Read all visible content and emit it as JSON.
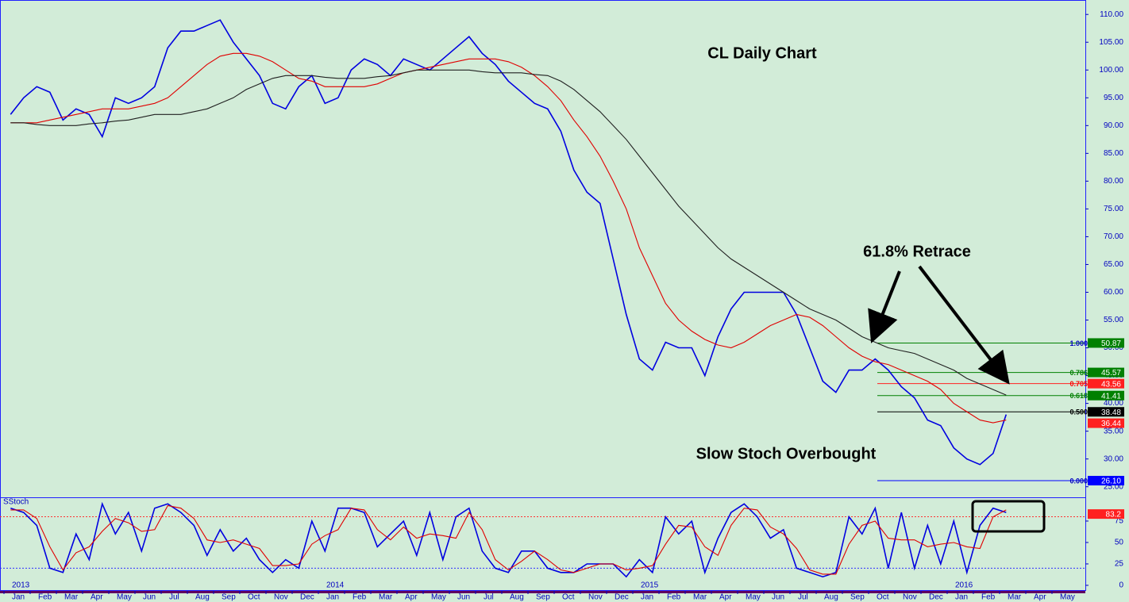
{
  "chart_data": [
    {
      "type": "line",
      "title": "CL Daily Chart",
      "annotations": [
        "61.8% Retrace",
        "Slow Stoch Overbought"
      ],
      "categories": [
        "Jan",
        null,
        "Feb",
        null,
        "Mar",
        null,
        "Apr",
        null,
        "May",
        null,
        "Jun",
        null,
        "Jul",
        null,
        "Aug",
        null,
        "Sep",
        null,
        "Oct",
        null,
        "Nov",
        null,
        "Dec",
        null,
        "Jan",
        null,
        "Feb",
        null,
        "Mar",
        null,
        "Apr",
        null,
        "May",
        null,
        "Jun",
        null,
        "Jul",
        null,
        "Aug",
        null,
        "Sep",
        null,
        "Oct",
        null,
        "Nov",
        null,
        "Dec",
        null,
        "Jan",
        null,
        "Feb",
        null,
        "Mar",
        null,
        "Apr",
        null,
        "May",
        null,
        "Jun",
        null,
        "Jul",
        null,
        "Aug",
        null,
        "Sep",
        null,
        "Oct",
        null,
        "Nov",
        null,
        "Dec",
        null,
        "Jan",
        null,
        "Feb",
        null,
        "Mar",
        null,
        "Apr",
        null,
        "May",
        null
      ],
      "years": [
        2013,
        2014,
        2015,
        2016
      ],
      "series": [
        {
          "color": "#0000e0",
          "values": [
            92,
            95,
            97,
            96,
            91,
            93,
            92,
            88,
            95,
            94,
            95,
            97,
            104,
            107,
            107,
            108,
            109,
            105,
            102,
            99,
            94,
            93,
            97,
            99,
            94,
            95,
            100,
            102,
            101,
            99,
            102,
            101,
            100,
            102,
            104,
            106,
            103,
            101,
            98,
            96,
            94,
            93,
            89,
            82,
            78,
            76,
            66,
            56,
            48,
            46,
            51,
            50,
            50,
            45,
            52,
            57,
            60,
            60,
            60,
            60,
            56,
            50,
            44,
            42,
            46,
            46,
            48,
            46,
            43,
            41,
            37,
            36,
            32,
            30,
            29,
            31,
            38,
            null,
            null,
            null,
            null,
            null
          ]
        },
        {
          "color": "#e00000",
          "values": [
            90.5,
            90.5,
            90.5,
            91,
            91.5,
            92,
            92.5,
            93,
            93,
            93,
            93.5,
            94,
            95,
            97,
            99,
            101,
            102.5,
            103,
            103,
            102.5,
            101.5,
            100,
            98.5,
            98,
            97,
            97,
            97,
            97,
            97.5,
            98.5,
            99.5,
            100,
            100.5,
            101,
            101.5,
            102,
            102,
            102,
            101.5,
            100.5,
            99,
            97,
            94.5,
            91,
            88,
            84.5,
            80,
            75,
            68,
            63,
            58,
            55,
            53,
            51.5,
            50.5,
            50,
            51,
            52.5,
            54,
            55,
            56,
            55.5,
            54,
            52,
            50,
            48.5,
            47.5,
            47,
            46,
            45,
            44,
            42.5,
            40,
            38.5,
            37,
            36.5,
            37,
            null,
            null,
            null,
            null,
            null
          ]
        },
        {
          "color": "#202020",
          "values": [
            90.5,
            90.5,
            90.2,
            90,
            90,
            90,
            90.3,
            90.5,
            90.8,
            91,
            91.5,
            92,
            92,
            92,
            92.5,
            93,
            94,
            95,
            96.5,
            97.5,
            98.5,
            99,
            99,
            99,
            98.7,
            98.5,
            98.5,
            98.5,
            98.8,
            99,
            99.5,
            100,
            100,
            100,
            100,
            100,
            99.7,
            99.5,
            99.5,
            99.5,
            99.2,
            99,
            98,
            96.5,
            94.5,
            92.5,
            90,
            87.5,
            84.5,
            81.5,
            78.5,
            75.5,
            73,
            70.5,
            68,
            66,
            64.5,
            63,
            61.5,
            60,
            58.5,
            57,
            56,
            55,
            53.5,
            52,
            51,
            50,
            49.5,
            49,
            48,
            47,
            46,
            44.5,
            43.5,
            42.5,
            41.5,
            null,
            null,
            null,
            null,
            null
          ]
        }
      ],
      "ylim": [
        23.1,
        112.6
      ],
      "yticks": [
        {
          "value": 25,
          "label": "25.00"
        },
        {
          "value": 30,
          "label": "30.00"
        },
        {
          "value": 35,
          "label": "35.00"
        },
        {
          "value": 40,
          "label": "40.00"
        },
        {
          "value": 45,
          "label": "45.00"
        },
        {
          "value": 50,
          "label": "50.00"
        },
        {
          "value": 55,
          "label": "55.00"
        },
        {
          "value": 60,
          "label": "60.00"
        },
        {
          "value": 65,
          "label": "65.00"
        },
        {
          "value": 70,
          "label": "70.00"
        },
        {
          "value": 75,
          "label": "75.00"
        },
        {
          "value": 80,
          "label": "80.00"
        },
        {
          "value": 85,
          "label": "85.00"
        },
        {
          "value": 90,
          "label": "90.00"
        },
        {
          "value": 95,
          "label": "95.00"
        },
        {
          "value": 100,
          "label": "100.00"
        },
        {
          "value": 105,
          "label": "105.00"
        },
        {
          "value": 110,
          "label": "110.00"
        }
      ],
      "levels": [
        {
          "ratio": "1.000",
          "value": 50.87,
          "label": "50.87",
          "color": "#008000",
          "ratio_color": "#0000c0"
        },
        {
          "ratio": "0.786",
          "value": 45.57,
          "label": "45.57",
          "color": "#008000",
          "ratio_color": "#008000"
        },
        {
          "ratio": "0.705",
          "value": 43.56,
          "label": "43.56",
          "color": "#ff2020",
          "ratio_color": "#ff0000"
        },
        {
          "ratio": "0.618",
          "value": 41.41,
          "label": "41.41",
          "color": "#008000",
          "ratio_color": "#008000"
        },
        {
          "ratio": "0.500",
          "value": 38.48,
          "label": "38.48",
          "color": "#000000",
          "ratio_color": "#000000"
        },
        {
          "ratio": "0.000",
          "value": 26.1,
          "label": "26.10",
          "color": "#0000ff",
          "ratio_color": "#0000c0"
        }
      ],
      "tags": [
        {
          "value": 36.44,
          "color": "#ff2020"
        }
      ]
    },
    {
      "type": "line",
      "label": "SStoch",
      "series": [
        {
          "color": "#0000e0",
          "values": [
            90,
            85,
            70,
            20,
            15,
            60,
            30,
            95,
            60,
            85,
            40,
            90,
            95,
            85,
            70,
            35,
            65,
            40,
            55,
            30,
            15,
            30,
            20,
            75,
            40,
            90,
            90,
            85,
            45,
            60,
            75,
            35,
            85,
            30,
            80,
            90,
            40,
            20,
            15,
            40,
            40,
            20,
            15,
            15,
            25,
            25,
            25,
            10,
            30,
            15,
            80,
            60,
            75,
            15,
            55,
            85,
            95,
            80,
            55,
            65,
            20,
            15,
            10,
            15,
            80,
            60,
            90,
            20,
            85,
            20,
            70,
            25,
            75,
            15,
            70,
            90,
            85,
            null,
            null,
            null,
            null,
            null
          ]
        },
        {
          "color": "#e00000",
          "values": [
            88,
            88,
            78,
            45,
            18,
            38,
            45,
            63,
            78,
            73,
            63,
            65,
            93,
            90,
            78,
            53,
            50,
            53,
            48,
            43,
            23,
            23,
            25,
            48,
            58,
            65,
            90,
            88,
            65,
            53,
            68,
            55,
            60,
            58,
            55,
            85,
            65,
            30,
            18,
            28,
            40,
            30,
            18,
            15,
            20,
            25,
            25,
            18,
            20,
            23,
            48,
            70,
            68,
            45,
            35,
            70,
            90,
            88,
            68,
            60,
            43,
            18,
            13,
            13,
            48,
            70,
            75,
            55,
            53,
            53,
            45,
            48,
            50,
            45,
            43,
            80,
            88,
            null,
            null,
            null,
            null,
            null
          ]
        }
      ],
      "ylim": [
        -6.5,
        101.8
      ],
      "yticks": [
        0,
        25,
        50,
        75
      ],
      "levels": [
        {
          "value": 80,
          "color": "#ff3030"
        },
        {
          "value": 20,
          "color": "#3030ff"
        }
      ],
      "tags": [
        {
          "value": 83.2,
          "color": "#ff2020"
        }
      ]
    }
  ]
}
